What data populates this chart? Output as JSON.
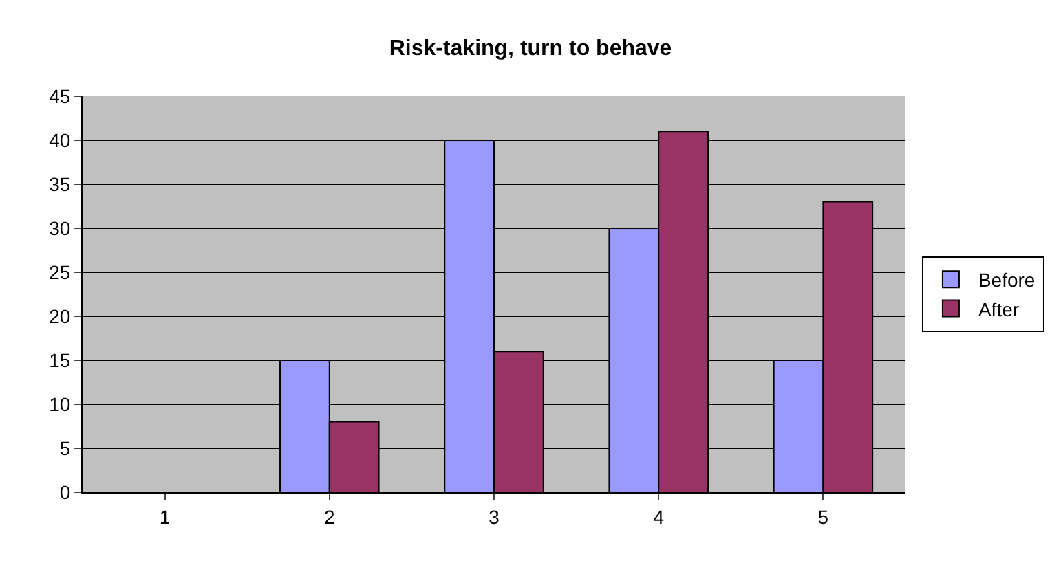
{
  "chart_data": {
    "type": "bar",
    "title": "Risk-taking, turn to behave",
    "categories": [
      "1",
      "2",
      "3",
      "4",
      "5"
    ],
    "series": [
      {
        "name": "Before",
        "color": "#9999ff",
        "values": [
          null,
          15,
          40,
          30,
          15
        ]
      },
      {
        "name": "After",
        "color": "#993366",
        "values": [
          null,
          8,
          16,
          41,
          33
        ]
      }
    ],
    "ylim": [
      0,
      45
    ],
    "yticks": [
      0,
      5,
      10,
      15,
      20,
      25,
      30,
      35,
      40,
      45
    ],
    "grid": "y",
    "legend": "right"
  }
}
